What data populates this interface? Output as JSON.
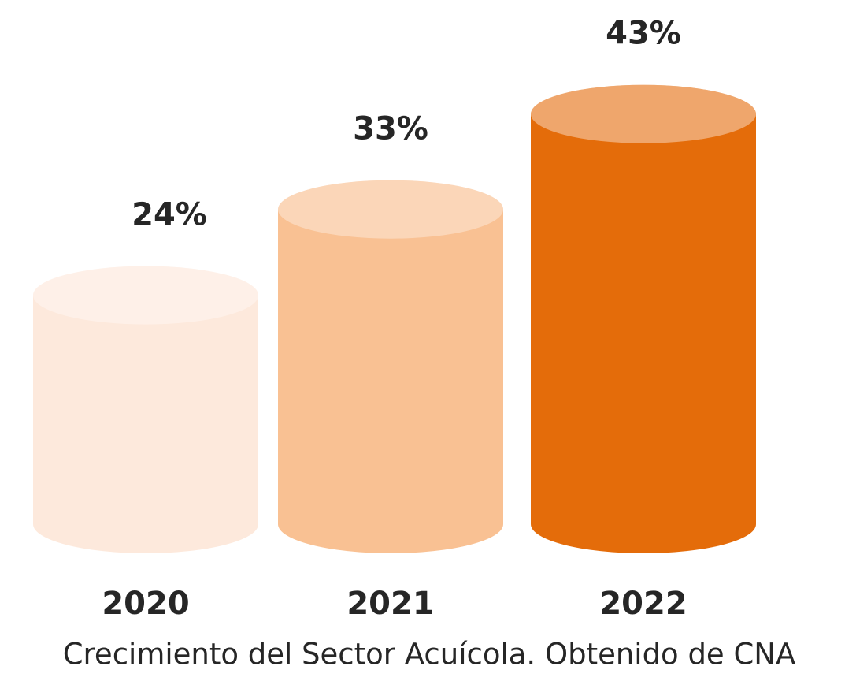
{
  "chart_data": {
    "type": "cylinder",
    "categories": [
      "2020",
      "2021",
      "2022"
    ],
    "values": [
      24,
      33,
      43
    ],
    "value_labels": [
      "24%",
      "33%",
      "43%"
    ],
    "colors": [
      "#fde9dc",
      "#f9c193",
      "#e46c0a"
    ],
    "caption": "Crecimiento del Sector Acuícola. Obtenido de CNA"
  }
}
